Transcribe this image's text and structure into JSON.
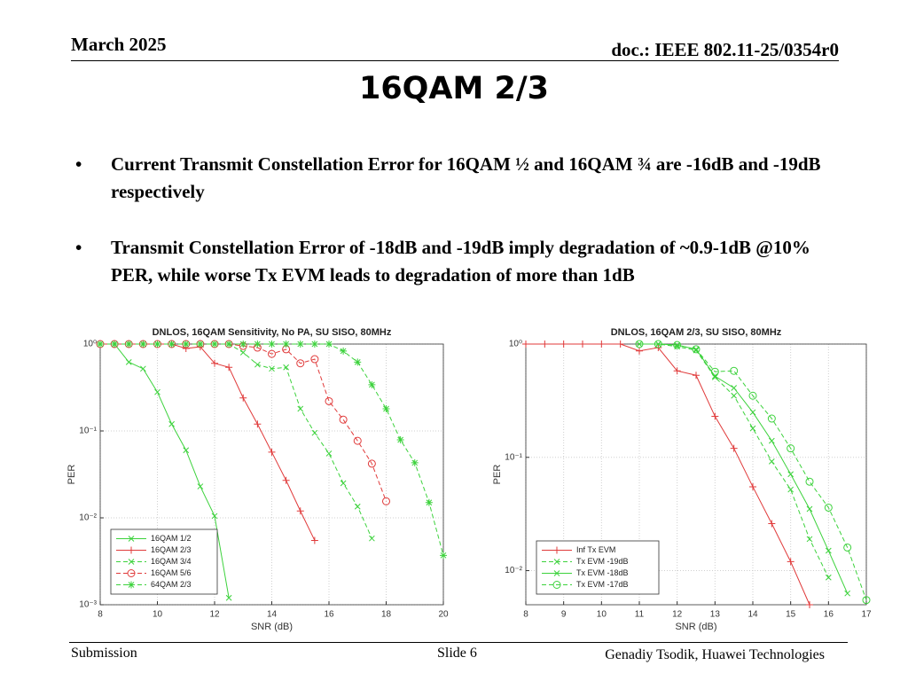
{
  "header": {
    "date": "March 2025",
    "doc": "doc.: IEEE 802.11-25/0354r0"
  },
  "title": "16QAM 2/3",
  "bullets": [
    "Current Transmit Constellation Error for 16QAM ½ and 16QAM ¾ are -16dB and -19dB respectively",
    "Transmit Constellation Error of -18dB and -19dB imply degradation of ~0.9-1dB @10% PER, while worse Tx EVM leads to degradation of more than 1dB"
  ],
  "chart_data": [
    {
      "type": "line",
      "title": "DNLOS, 16QAM Sensitivity, No PA, SU SISO, 80MHz",
      "x_label": "SNR (dB)",
      "y_label": "PER",
      "log_y": true,
      "grid": true,
      "legend": "lower left",
      "xlim": [
        8,
        20
      ],
      "xticks": [
        8,
        10,
        12,
        14,
        16,
        18,
        20
      ],
      "ylim": [
        0.001,
        1
      ],
      "yticks": [
        {
          "value": 0.001,
          "label": "10⁻³"
        },
        {
          "value": 0.01,
          "label": "10⁻²"
        },
        {
          "value": 0.1,
          "label": "10⁻¹"
        },
        {
          "value": 1,
          "label": "10⁰"
        }
      ],
      "x": [
        8,
        8.5,
        9,
        9.5,
        10,
        10.5,
        11,
        11.5,
        12,
        12.5,
        13,
        13.5,
        14,
        14.5,
        15,
        15.5,
        16,
        16.5,
        17,
        17.5,
        18,
        18.5,
        19,
        19.5,
        20
      ],
      "series": [
        {
          "name": "16QAM 1/2",
          "color": "#3cd23c",
          "dash": false,
          "marker": "x",
          "values": [
            1,
            1,
            0.62,
            0.52,
            0.28,
            0.12,
            0.06,
            0.023,
            0.0105,
            0.0012,
            null,
            null,
            null,
            null,
            null,
            null,
            null,
            null,
            null,
            null,
            null,
            null,
            null,
            null,
            null
          ]
        },
        {
          "name": "16QAM 2/3",
          "color": "#e03a3a",
          "dash": false,
          "marker": "+",
          "values": [
            1,
            1,
            1,
            1,
            1,
            1,
            0.89,
            0.93,
            0.6,
            0.54,
            0.24,
            0.12,
            0.057,
            0.027,
            0.012,
            0.0055,
            null,
            null,
            null,
            null,
            null,
            null,
            null,
            null,
            null
          ]
        },
        {
          "name": "16QAM 3/4",
          "color": "#3cd23c",
          "dash": true,
          "marker": "x",
          "values": [
            1,
            1,
            1,
            1,
            1,
            1,
            1,
            1,
            1,
            1,
            0.8,
            0.58,
            0.52,
            0.54,
            0.18,
            0.095,
            0.055,
            0.025,
            0.0135,
            0.0058,
            null,
            null,
            null,
            null,
            null
          ]
        },
        {
          "name": "16QAM 5/6",
          "color": "#e03a3a",
          "dash": true,
          "marker": "o",
          "values": [
            1,
            1,
            1,
            1,
            1,
            1,
            1,
            1,
            1,
            1,
            0.95,
            0.91,
            0.77,
            0.87,
            0.6,
            0.67,
            0.22,
            0.135,
            0.077,
            0.042,
            0.0155,
            null,
            null,
            null,
            null
          ]
        },
        {
          "name": "64QAM 2/3",
          "color": "#3cd23c",
          "dash": true,
          "marker": "*",
          "values": [
            1,
            1,
            1,
            1,
            1,
            1,
            1,
            1,
            1,
            1,
            1,
            1,
            1,
            1,
            1,
            1,
            1,
            0.83,
            0.62,
            0.34,
            0.18,
            0.079,
            0.043,
            0.015,
            0.0037
          ]
        }
      ]
    },
    {
      "type": "line",
      "title": "DNLOS, 16QAM 2/3, SU SISO, 80MHz",
      "x_label": "SNR (dB)",
      "y_label": "PER",
      "log_y": true,
      "grid": true,
      "legend": "lower left",
      "xlim": [
        8,
        17
      ],
      "xticks": [
        8,
        9,
        10,
        11,
        12,
        13,
        14,
        15,
        16,
        17
      ],
      "ylim": [
        0.005,
        1
      ],
      "yticks": [
        {
          "value": 0.01,
          "label": "10⁻²"
        },
        {
          "value": 0.1,
          "label": "10⁻¹"
        },
        {
          "value": 1,
          "label": "10⁰"
        }
      ],
      "x": [
        8,
        8.5,
        9,
        9.5,
        10,
        10.5,
        11,
        11.5,
        12,
        12.5,
        13,
        13.5,
        14,
        14.5,
        15,
        15.5,
        16,
        16.5,
        17
      ],
      "series": [
        {
          "name": "Inf Tx EVM",
          "color": "#e03a3a",
          "dash": false,
          "marker": "+",
          "values": [
            1,
            1,
            1,
            1,
            1,
            1,
            0.87,
            0.93,
            0.58,
            0.53,
            0.23,
            0.12,
            0.055,
            0.026,
            0.012,
            0.005,
            null,
            null,
            null
          ]
        },
        {
          "name": "Tx EVM -19dB",
          "color": "#3cd23c",
          "dash": true,
          "marker": "x",
          "values": [
            null,
            null,
            null,
            null,
            null,
            null,
            1,
            1,
            0.95,
            0.88,
            0.51,
            0.35,
            0.18,
            0.092,
            0.052,
            0.019,
            0.0087,
            null,
            null
          ]
        },
        {
          "name": "Tx EVM -18dB",
          "color": "#3cd23c",
          "dash": false,
          "marker": "x",
          "values": [
            null,
            null,
            null,
            null,
            null,
            null,
            1,
            1,
            0.98,
            0.9,
            0.52,
            0.41,
            0.25,
            0.14,
            0.071,
            0.035,
            0.015,
            0.0063,
            null
          ]
        },
        {
          "name": "Tx EVM -17dB",
          "color": "#3cd23c",
          "dash": true,
          "marker": "o",
          "values": [
            null,
            null,
            null,
            null,
            null,
            null,
            1,
            1,
            0.98,
            0.9,
            0.57,
            0.58,
            0.35,
            0.22,
            0.12,
            0.061,
            0.036,
            0.016,
            0.0055
          ]
        }
      ]
    }
  ],
  "footer": {
    "left": "Submission",
    "center": "Slide 6",
    "right": "Genadiy Tsodik, Huawei Technologies"
  }
}
